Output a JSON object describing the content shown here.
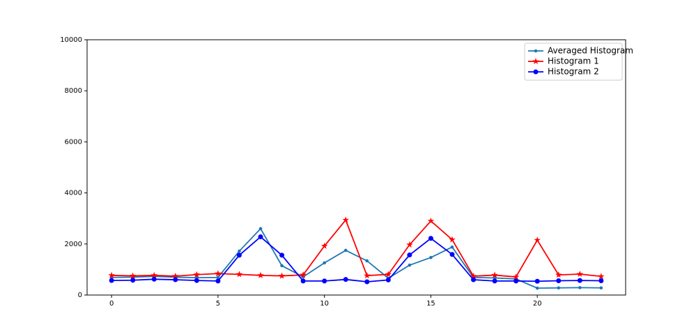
{
  "chart_data": {
    "type": "line",
    "x": [
      0,
      1,
      2,
      3,
      4,
      5,
      6,
      7,
      8,
      9,
      10,
      11,
      12,
      13,
      14,
      15,
      16,
      17,
      18,
      19,
      20,
      21,
      22,
      23
    ],
    "series": [
      {
        "name": "Averaged Histogram",
        "color": "#1f77b4",
        "marker": "point",
        "values": [
          690,
          700,
          730,
          700,
          680,
          690,
          1720,
          2600,
          1150,
          710,
          1260,
          1750,
          1340,
          660,
          1170,
          1470,
          1880,
          690,
          670,
          630,
          270,
          280,
          290,
          280
        ]
      },
      {
        "name": "Histogram 1",
        "color": "#ff0000",
        "marker": "star",
        "values": [
          770,
          750,
          770,
          740,
          800,
          840,
          810,
          770,
          750,
          790,
          1920,
          2940,
          760,
          810,
          1970,
          2900,
          2170,
          740,
          780,
          710,
          2150,
          790,
          820,
          730
        ]
      },
      {
        "name": "Histogram 2",
        "color": "#0000ff",
        "marker": "circle",
        "values": [
          570,
          580,
          620,
          600,
          570,
          550,
          1560,
          2280,
          1560,
          550,
          550,
          610,
          520,
          590,
          1570,
          2220,
          1590,
          600,
          550,
          550,
          540,
          560,
          570,
          560
        ]
      }
    ],
    "xlim": [
      -1.15,
      24.15
    ],
    "xticks": [
      0,
      5,
      10,
      15,
      20
    ],
    "ylim": [
      0,
      10000
    ],
    "yticks": [
      0,
      2000,
      4000,
      6000,
      8000,
      10000
    ],
    "legend": "upper right"
  }
}
